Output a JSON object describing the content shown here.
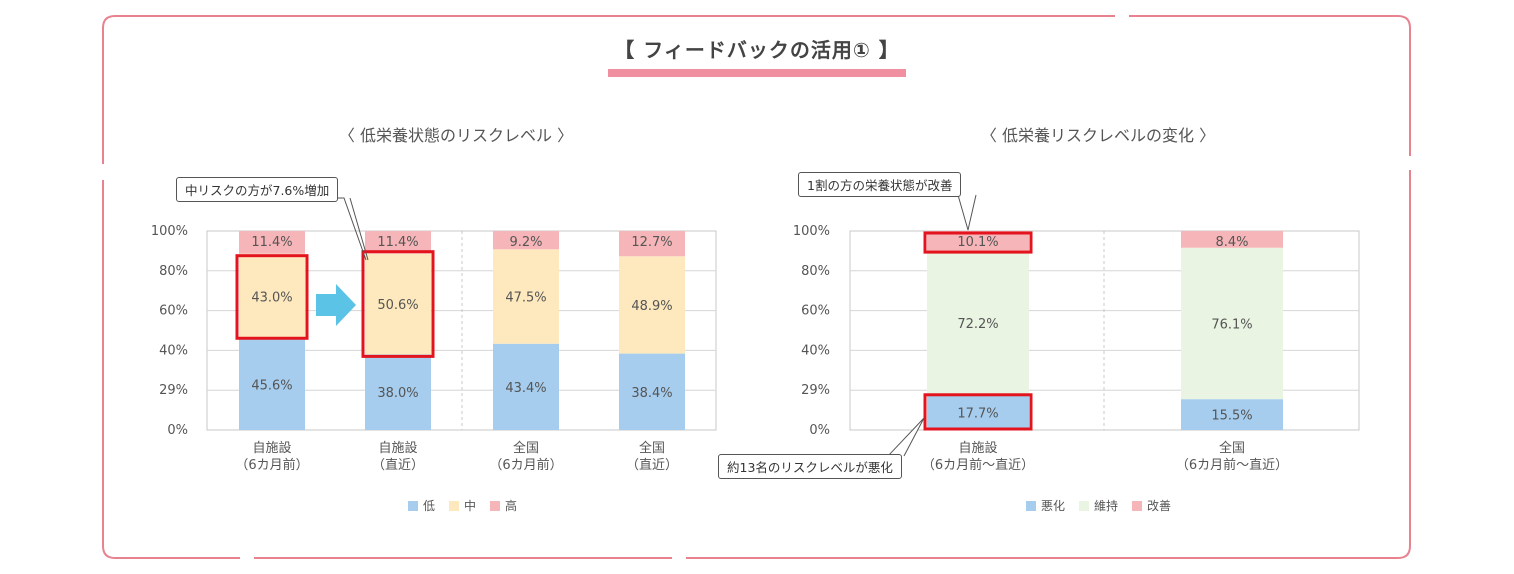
{
  "main_title": "【 フィードバックの活用① 】",
  "colors": {
    "frame": "#e8828f",
    "underline": "#ef8fa0",
    "highlight": "#e3141e",
    "arrow": "#5bc3e6"
  },
  "chart_data": [
    {
      "type": "bar",
      "stacked": true,
      "title": "〈 低栄養状態のリスクレベル 〉",
      "yticks": [
        "100%",
        "80%",
        "60%",
        "40%",
        "29%",
        "0%"
      ],
      "categories": [
        {
          "line1": "自施設",
          "line2": "（6カ月前）"
        },
        {
          "line1": "自施設",
          "line2": "（直近）"
        },
        {
          "line1": "全国",
          "line2": "（6カ月前）"
        },
        {
          "line1": "全国",
          "line2": "（直近）"
        }
      ],
      "series": [
        {
          "name": "低",
          "color": "#a6cdee",
          "values": [
            45.6,
            38.0,
            43.4,
            38.4
          ],
          "labels": [
            "45.6%",
            "38.0%",
            "43.4%",
            "38.4%"
          ]
        },
        {
          "name": "中",
          "color": "#fde9bd",
          "values": [
            43.0,
            50.6,
            47.5,
            48.9
          ],
          "labels": [
            "43.0%",
            "50.6%",
            "47.5%",
            "48.9%"
          ]
        },
        {
          "name": "高",
          "color": "#f6b5b8",
          "values": [
            11.4,
            11.4,
            9.2,
            12.7
          ],
          "labels": [
            "11.4%",
            "11.4%",
            "9.2%",
            "12.7%"
          ]
        }
      ],
      "highlights": [
        {
          "series": 1,
          "category": 0
        },
        {
          "series": 1,
          "category": 1
        }
      ],
      "callouts": [
        "中リスクの方が7.6%増加"
      ],
      "legend_position": "bottom"
    },
    {
      "type": "bar",
      "stacked": true,
      "title": "〈 低栄養リスクレベルの変化 〉",
      "yticks": [
        "100%",
        "80%",
        "60%",
        "40%",
        "29%",
        "0%"
      ],
      "categories": [
        {
          "line1": "自施設",
          "line2": "（6カ月前〜直近）"
        },
        {
          "line1": "全国",
          "line2": "（6カ月前〜直近）"
        }
      ],
      "series": [
        {
          "name": "悪化",
          "color": "#a6cdee",
          "values": [
            17.7,
            15.5
          ],
          "labels": [
            "17.7%",
            "15.5%"
          ]
        },
        {
          "name": "維持",
          "color": "#e9f4e2",
          "values": [
            72.2,
            76.1
          ],
          "labels": [
            "72.2%",
            "76.1%"
          ]
        },
        {
          "name": "改善",
          "color": "#f6b5b8",
          "values": [
            10.1,
            8.4
          ],
          "labels": [
            "10.1%",
            "8.4%"
          ]
        }
      ],
      "highlights": [
        {
          "series": 0,
          "category": 0
        },
        {
          "series": 2,
          "category": 0
        }
      ],
      "callouts": [
        "1割の方の栄養状態が改善",
        "約13名のリスクレベルが悪化"
      ],
      "legend_position": "bottom"
    }
  ]
}
